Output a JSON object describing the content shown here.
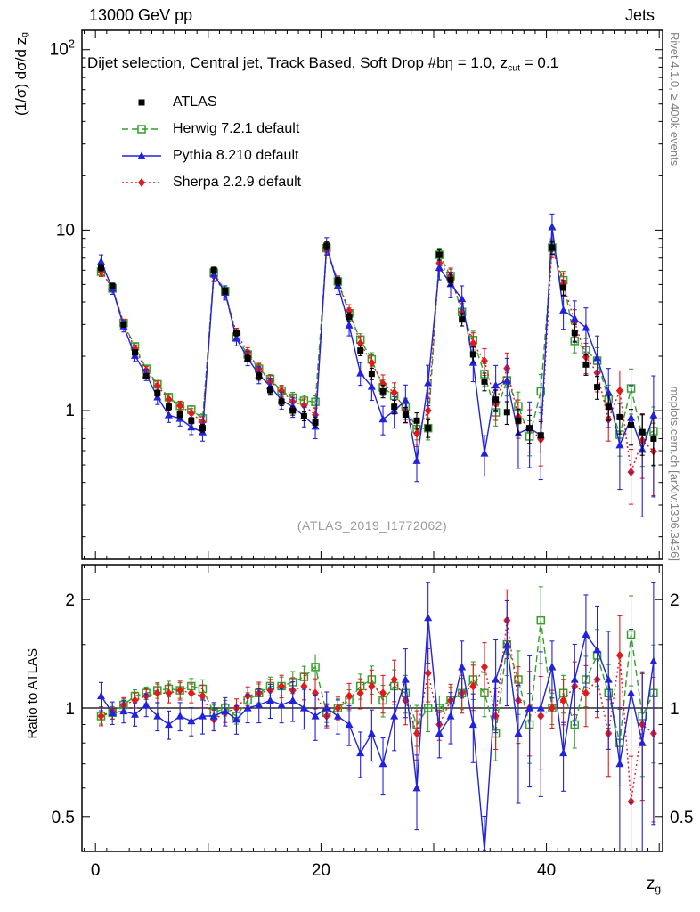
{
  "header": {
    "left": "13000 GeV pp",
    "right": "Jets"
  },
  "panel_title": {
    "text": "Dijet selection, Central jet, Track Based, Soft Drop #bη = 1.0, z",
    "sub": "cut",
    "tail": " = 0.1"
  },
  "axes": {
    "y_label_main": {
      "text": "(1/σ) dσ/d z",
      "sub": "g"
    },
    "y_label_ratio": "Ratio to ATLAS",
    "x_label": {
      "text": "z",
      "sub": "g"
    },
    "main_yticks": [
      {
        "v": 100,
        "base": "10",
        "sup": "2"
      },
      {
        "v": 10,
        "base": "10",
        "sup": ""
      },
      {
        "v": 1,
        "base": "1",
        "sup": ""
      }
    ],
    "ratio_yticks": [
      {
        "v": 2,
        "label": "2"
      },
      {
        "v": 1,
        "label": "1"
      },
      {
        "v": 0.5,
        "label": "0.5"
      }
    ],
    "xticks": [
      {
        "v": 0,
        "label": "0"
      },
      {
        "v": 20,
        "label": "20"
      },
      {
        "v": 40,
        "label": "40"
      }
    ]
  },
  "side_notes": {
    "top_right": "Rivet 4.1.0, ≥ 400k events",
    "bottom_right": "mcplots.cern.ch [arXiv:1306.3436]"
  },
  "watermark": "(ATLAS_2019_I1772062)",
  "legend": [
    {
      "key": "atlas",
      "label": "ATLAS",
      "marker": "square-filled",
      "color": "#000000",
      "line": "none"
    },
    {
      "key": "herwig",
      "label": "Herwig 7.2.1 default",
      "marker": "square-open",
      "color": "#33a02c",
      "line": "dashed"
    },
    {
      "key": "pythia",
      "label": "Pythia 8.210 default",
      "marker": "triangle-filled",
      "color": "#2222dd",
      "line": "solid"
    },
    {
      "key": "sherpa",
      "label": "Sherpa 2.2.9 default",
      "marker": "diamond-filled",
      "color": "#e31a1c",
      "line": "dotted"
    }
  ],
  "chart_data": {
    "type": "line",
    "title": "Dijet selection, Central jet, Track Based, Soft Drop #bη = 1.0, z_cut = 0.1",
    "xlabel": "z_g",
    "ylabel_main": "(1/σ) dσ/d z_g",
    "ylabel_ratio": "Ratio to ATLAS",
    "x_start": 0.5,
    "x_step": 1,
    "xlim": [
      -1.2,
      50.3
    ],
    "main_ylog": true,
    "main_ylim": [
      0.15,
      128
    ],
    "ratio_ylog": true,
    "ratio_ylim": [
      0.4,
      2.5
    ],
    "atlas": [
      6.2,
      4.9,
      3.0,
      2.1,
      1.55,
      1.25,
      1.05,
      0.95,
      0.88,
      0.8,
      6.0,
      4.6,
      2.7,
      1.95,
      1.55,
      1.3,
      1.12,
      1.0,
      0.93,
      0.86,
      8.2,
      5.2,
      3.3,
      2.15,
      1.6,
      1.28,
      1.05,
      0.95,
      0.88,
      0.8,
      7.3,
      5.3,
      3.2,
      2.05,
      1.45,
      1.15,
      0.98,
      0.88,
      0.8,
      0.73,
      8.0,
      4.8,
      2.7,
      1.8,
      1.35,
      1.05,
      0.92,
      0.83,
      0.76,
      0.7
    ],
    "ratios": {
      "herwig": [
        0.95,
        0.97,
        1.02,
        1.08,
        1.1,
        1.12,
        1.13,
        1.12,
        1.15,
        1.13,
        0.97,
        1.0,
        0.95,
        1.05,
        1.1,
        1.15,
        1.15,
        1.18,
        1.22,
        1.3,
        0.97,
        1.0,
        1.05,
        1.15,
        1.2,
        1.05,
        1.15,
        1.1,
        0.9,
        1.0,
        1.0,
        1.05,
        1.1,
        1.2,
        1.1,
        0.85,
        1.5,
        1.2,
        0.9,
        1.75,
        1.0,
        1.1,
        0.9,
        1.2,
        1.4,
        1.1,
        0.8,
        1.6,
        0.95,
        1.1
      ],
      "pythia": [
        1.08,
        0.97,
        0.98,
        0.96,
        1.02,
        0.95,
        0.9,
        0.95,
        0.92,
        0.95,
        0.95,
        0.98,
        0.93,
        1.0,
        1.02,
        1.05,
        1.02,
        1.05,
        1.0,
        0.95,
        1.0,
        0.95,
        0.9,
        0.75,
        0.85,
        0.7,
        0.95,
        1.2,
        0.6,
        1.78,
        0.85,
        0.95,
        1.3,
        0.9,
        0.4,
        1.2,
        1.5,
        0.85,
        1.0,
        1.0,
        1.3,
        0.75,
        1.2,
        1.6,
        1.45,
        1.2,
        0.7,
        1.1,
        0.8,
        1.35
      ],
      "sherpa": [
        0.95,
        0.98,
        1.02,
        1.05,
        1.08,
        1.1,
        1.1,
        1.12,
        1.1,
        1.08,
        0.93,
        0.97,
        1.0,
        1.08,
        1.1,
        1.12,
        1.15,
        1.12,
        1.15,
        1.1,
        0.95,
        1.0,
        1.08,
        1.1,
        1.15,
        1.1,
        1.2,
        1.05,
        0.85,
        1.25,
        0.9,
        1.05,
        1.1,
        1.15,
        1.3,
        0.95,
        1.75,
        1.05,
        1.0,
        0.95,
        1.0,
        1.05,
        1.15,
        1.1,
        1.2,
        0.85,
        1.4,
        0.55,
        0.9,
        0.85
      ]
    },
    "err_frac": [
      0.05,
      0.04,
      0.04,
      0.04,
      0.04,
      0.05,
      0.05,
      0.05,
      0.05,
      0.06,
      0.05,
      0.05,
      0.05,
      0.05,
      0.06,
      0.06,
      0.06,
      0.07,
      0.07,
      0.08,
      0.06,
      0.06,
      0.07,
      0.08,
      0.09,
      0.1,
      0.11,
      0.12,
      0.13,
      0.14,
      0.08,
      0.09,
      0.1,
      0.12,
      0.14,
      0.16,
      0.18,
      0.2,
      0.22,
      0.24,
      0.1,
      0.12,
      0.14,
      0.16,
      0.18,
      0.2,
      0.24,
      0.28,
      0.32,
      0.36
    ],
    "err_mult": {
      "atlas": 0.8,
      "herwig": 1.0,
      "pythia": 1.8,
      "sherpa": 1.2
    }
  }
}
